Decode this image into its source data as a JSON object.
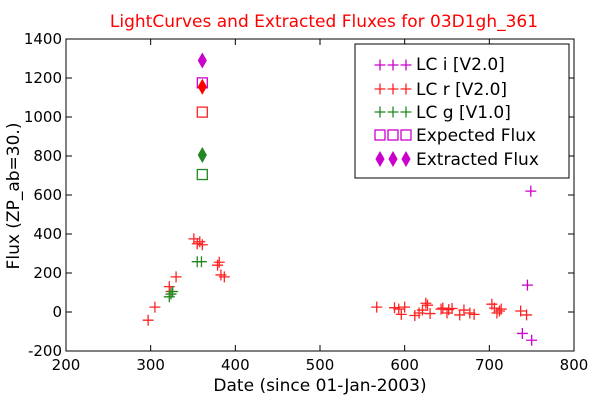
{
  "chart_data": {
    "type": "scatter",
    "title": "LightCurves and Extracted Fluxes for 03D1gh_361",
    "xlabel": "Date (since 01-Jan-2003)",
    "ylabel": "Flux (ZP_ab=30.)",
    "xlim": [
      200,
      800
    ],
    "ylim": [
      -200,
      1400
    ],
    "xticks": [
      "200",
      "300",
      "400",
      "500",
      "600",
      "700",
      "800"
    ],
    "yticks": [
      "-200",
      "0",
      "200",
      "400",
      "600",
      "800",
      "1000",
      "1200",
      "1400"
    ],
    "grid": false,
    "legend_position": "top-right",
    "colors": {
      "title": "#ff0000",
      "i": "#cc00cc",
      "r": "#ff2222",
      "g": "#228822"
    },
    "series": [
      {
        "name": "LC i [V2.0]",
        "marker": "plus",
        "color": "#cc00cc",
        "points": [
          [
            739,
            -110
          ],
          [
            745,
            138
          ],
          [
            749,
            620
          ],
          [
            750,
            -145
          ]
        ]
      },
      {
        "name": "LC r [V2.0]",
        "marker": "plus",
        "color": "#ff2222",
        "points": [
          [
            297,
            -42
          ],
          [
            305,
            25
          ],
          [
            322,
            130
          ],
          [
            324,
            105
          ],
          [
            330,
            180
          ],
          [
            351,
            375
          ],
          [
            355,
            350
          ],
          [
            358,
            360
          ],
          [
            361,
            345
          ],
          [
            379,
            240
          ],
          [
            381,
            255
          ],
          [
            383,
            190
          ],
          [
            387,
            180
          ],
          [
            567,
            25
          ],
          [
            588,
            22
          ],
          [
            593,
            15
          ],
          [
            596,
            -12
          ],
          [
            600,
            25
          ],
          [
            612,
            -18
          ],
          [
            617,
            -5
          ],
          [
            621,
            10
          ],
          [
            625,
            45
          ],
          [
            627,
            35
          ],
          [
            630,
            -8
          ],
          [
            643,
            15
          ],
          [
            645,
            20
          ],
          [
            650,
            -5
          ],
          [
            652,
            12
          ],
          [
            656,
            18
          ],
          [
            665,
            -15
          ],
          [
            670,
            10
          ],
          [
            677,
            -5
          ],
          [
            682,
            -12
          ],
          [
            703,
            40
          ],
          [
            706,
            20
          ],
          [
            709,
            -5
          ],
          [
            712,
            5
          ],
          [
            714,
            15
          ],
          [
            737,
            5
          ],
          [
            744,
            -15
          ]
        ]
      },
      {
        "name": "LC g [V1.0]",
        "marker": "plus",
        "color": "#228822",
        "points": [
          [
            322,
            78
          ],
          [
            324,
            92
          ],
          [
            326,
            105
          ],
          [
            355,
            258
          ],
          [
            360,
            258
          ]
        ]
      },
      {
        "name": "Expected Flux",
        "marker": "square",
        "color": "#cc00cc",
        "points": [
          [
            361,
            1175
          ]
        ]
      },
      {
        "name": "Extracted Flux",
        "marker": "diamond",
        "color": "#cc00cc",
        "points": [
          [
            361,
            1290
          ]
        ]
      }
    ],
    "unlisted_points": [
      {
        "marker": "square",
        "color": "#ff2222",
        "x": 361,
        "y": 1025
      },
      {
        "marker": "diamond",
        "color": "#ff0000",
        "x": 361,
        "y": 1155
      },
      {
        "marker": "square",
        "color": "#228822",
        "x": 361,
        "y": 705
      },
      {
        "marker": "diamond",
        "color": "#228822",
        "x": 361,
        "y": 805
      }
    ]
  }
}
